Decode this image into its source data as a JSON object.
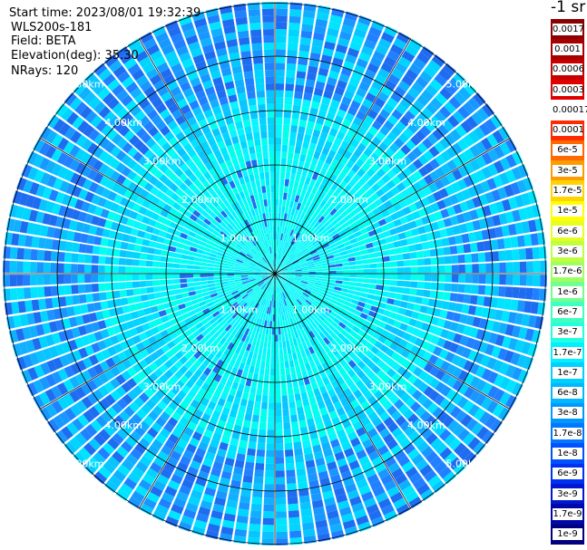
{
  "header": {
    "start_time": "Start time: 2023/08/01 19:32:39",
    "device": "WLS200s-181",
    "field": "Field: BETA",
    "elevation": "Elevation(deg): 35.30",
    "nrays": "NRays: 120"
  },
  "colorbar": {
    "unit": "-1 sr",
    "labels": [
      "0.0017",
      "0.001",
      "0.0006",
      "0.0003",
      "0.00017",
      "0.0001",
      "6e-5",
      "3e-5",
      "1.7e-5",
      "1e-5",
      "6e-6",
      "3e-6",
      "1.7e-6",
      "1e-6",
      "6e-7",
      "3e-7",
      "1.7e-7",
      "1e-7",
      "6e-8",
      "3e-8",
      "1.7e-8",
      "1e-8",
      "6e-9",
      "3e-9",
      "1.7e-9",
      "1e-9"
    ],
    "colors": [
      "#8b0000",
      "#a80000",
      "#c80000",
      "#e00000",
      "#ffffff",
      "#ff2a00",
      "#ff6a00",
      "#ff9a00",
      "#ffd400",
      "#ffff00",
      "#e6ff20",
      "#bfff40",
      "#a0ff60",
      "#70ff90",
      "#40ffc0",
      "#20ffe0",
      "#00f0ff",
      "#00d0ff",
      "#00b8ff",
      "#0098ff",
      "#0078ff",
      "#0050ff",
      "#0030f0",
      "#0018d0",
      "#0008a8",
      "#000080"
    ]
  },
  "chart_data": {
    "type": "heatmap",
    "projection": "polar",
    "title": "",
    "field": "BETA",
    "n_rays": 120,
    "elevation_deg": 35.3,
    "range_rings_km": [
      1,
      2,
      3,
      4,
      5
    ],
    "range_labels": [
      "1.00km",
      "2.00km",
      "3.00km",
      "4.00km",
      "5.00km"
    ],
    "max_range_km": 5.0,
    "typical_value_near_range": "1e-6",
    "typical_value_far_range": "1e-8",
    "grid": true
  }
}
